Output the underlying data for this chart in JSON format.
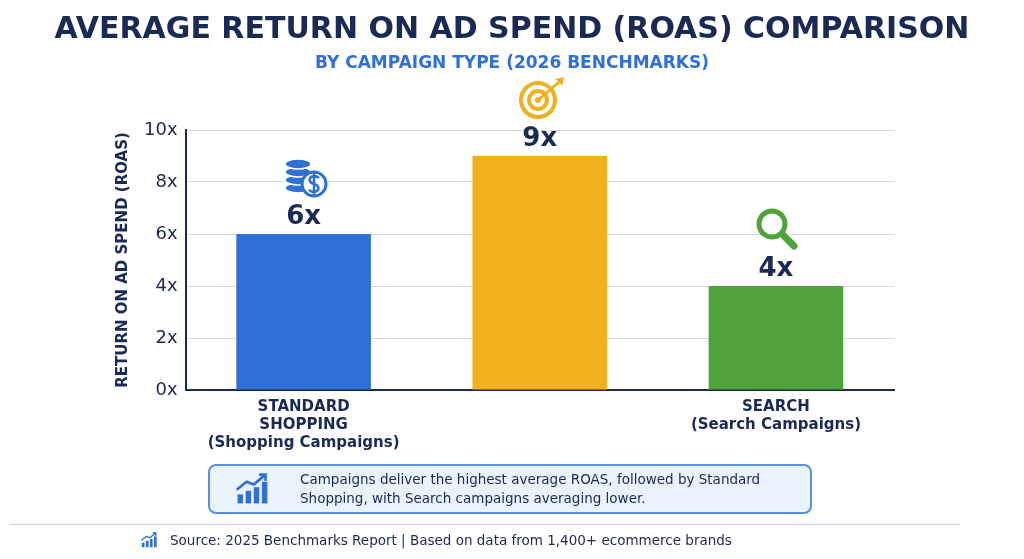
{
  "chart_data": {
    "type": "bar",
    "title": "AVERAGE RETURN ON AD SPEND (ROAS) COMPARISON",
    "subtitle": "BY CAMPAIGN TYPE (2026 BENCHMARKS)",
    "ylabel": "RETURN ON AD SPEND (ROAS)",
    "categories": [
      "STANDARD\nSHOPPING\n(Shopping Campaigns)",
      null,
      "SEARCH\n(Search Campaigns)"
    ],
    "values": [
      6,
      9,
      4
    ],
    "colors": [
      "#2f6fd6",
      "#f2b01e",
      "#4fa33a"
    ],
    "value_labels": [
      "6x",
      "9x",
      "4x"
    ],
    "ylim": [
      0,
      10
    ],
    "yticks": [
      {
        "value": 0,
        "label": "0x"
      },
      {
        "value": 2,
        "label": "2x"
      },
      {
        "value": 4,
        "label": "4x"
      },
      {
        "value": 6,
        "label": "6x"
      },
      {
        "value": 8,
        "label": "8x"
      },
      {
        "value": 10,
        "label": "10x"
      }
    ],
    "grid": "y",
    "legend": false,
    "annotations": [
      "Campaigns deliver the highest average ROAS, followed by Standard Shopping, with Search campaigns averaging lower.",
      "Source: 2025 Benchmarks Report | Based on data from 1,400+ ecommerce brands"
    ]
  }
}
